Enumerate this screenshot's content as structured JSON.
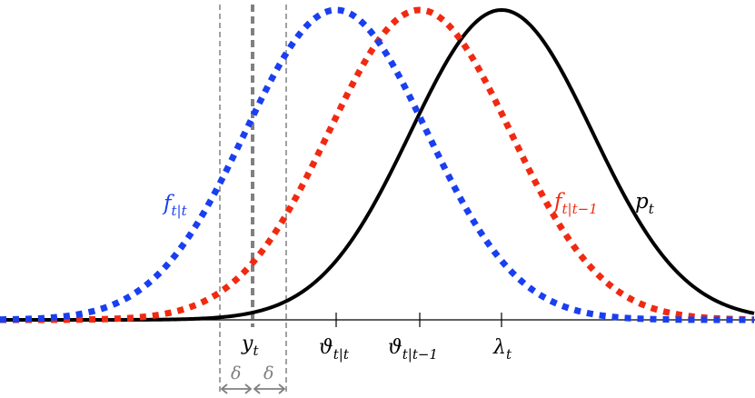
{
  "curves": [
    {
      "name": "f",
      "subscript": "t|t",
      "color": "#1a3ff0",
      "style": "dotted",
      "center": 370,
      "sigma": 100
    },
    {
      "name": "f",
      "subscript": "t|t−1",
      "color": "#f02a12",
      "style": "dotted",
      "center": 462,
      "sigma": 100
    },
    {
      "name": "p",
      "subscript": "t",
      "color": "#000000",
      "style": "solid",
      "center": 552,
      "sigma": 100
    }
  ],
  "axis_labels": [
    {
      "name": "y",
      "subscript": "t"
    },
    {
      "name": "ϑ",
      "subscript": "t|t"
    },
    {
      "name": "ϑ",
      "subscript": "t|t−1"
    },
    {
      "name": "λ",
      "subscript": "t"
    }
  ],
  "delta": {
    "left_label": "δ",
    "right_label": "δ",
    "color": "#808080"
  }
}
